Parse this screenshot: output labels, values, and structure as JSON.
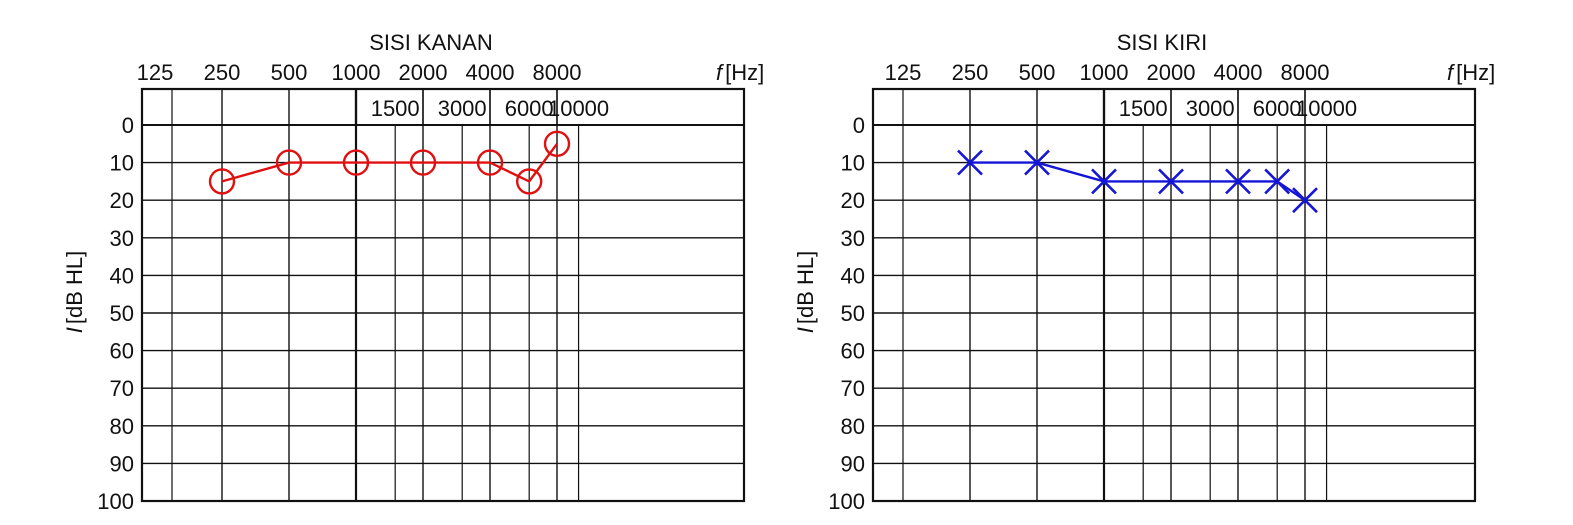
{
  "chart_data": [
    {
      "type": "line",
      "title": "SISI KANAN",
      "xlabel": "f [Hz]",
      "ylabel": "I [dB HL]",
      "x_unit_symbol": "f",
      "x_unit": "[Hz]",
      "y_unit_symbol": "I",
      "y_unit": "[dB HL]",
      "x_scale": "log2",
      "x_ticks_top": [
        125,
        250,
        500,
        1000,
        2000,
        4000,
        8000
      ],
      "x_ticks_inner": [
        1500,
        3000,
        6000,
        10000
      ],
      "y_ticks": [
        0,
        10,
        20,
        30,
        40,
        50,
        60,
        70,
        80,
        90,
        100
      ],
      "ylim": [
        100,
        0
      ],
      "y_inverted": true,
      "grid": true,
      "marker": "circle",
      "color": "#e01010",
      "series": [
        {
          "x": [
            250,
            500,
            1000,
            2000,
            4000,
            6000,
            8000
          ],
          "y": [
            15,
            10,
            10,
            10,
            10,
            15,
            5
          ]
        }
      ]
    },
    {
      "type": "line",
      "title": "SISI KIRI",
      "xlabel": "f [Hz]",
      "ylabel": "I [dB HL]",
      "x_unit_symbol": "f",
      "x_unit": "[Hz]",
      "y_unit_symbol": "I",
      "y_unit": "[dB HL]",
      "x_scale": "log2",
      "x_ticks_top": [
        125,
        250,
        500,
        1000,
        2000,
        4000,
        8000
      ],
      "x_ticks_inner": [
        1500,
        3000,
        6000,
        10000
      ],
      "y_ticks": [
        0,
        10,
        20,
        30,
        40,
        50,
        60,
        70,
        80,
        90,
        100
      ],
      "ylim": [
        100,
        0
      ],
      "y_inverted": true,
      "grid": true,
      "marker": "cross",
      "color": "#1515d8",
      "series": [
        {
          "x": [
            250,
            500,
            1000,
            2000,
            4000,
            6000,
            8000
          ],
          "y": [
            10,
            10,
            15,
            15,
            15,
            15,
            20
          ]
        }
      ]
    }
  ]
}
